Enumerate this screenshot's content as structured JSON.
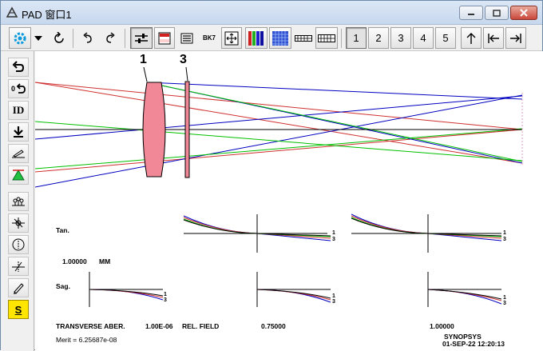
{
  "window": {
    "title": "PAD 窗口1",
    "controls": [
      "minimize",
      "restore",
      "close"
    ]
  },
  "toolbar": {
    "buttons": [
      {
        "name": "gear-dropdown",
        "icon": "gear-icon"
      },
      {
        "name": "refresh",
        "icon": "refresh-icon"
      },
      {
        "name": "undo",
        "icon": "undo-arrow-icon"
      },
      {
        "name": "redo",
        "icon": "redo-arrow-icon"
      },
      {
        "name": "sliders",
        "icon": "sliders-icon"
      },
      {
        "name": "color-table",
        "icon": "color-table-icon"
      },
      {
        "name": "list",
        "icon": "list-icon"
      },
      {
        "name": "glass",
        "label": "BK7"
      },
      {
        "name": "fit",
        "icon": "fit-icon"
      },
      {
        "name": "color-bars",
        "icon": "color-bars-icon"
      },
      {
        "name": "spot",
        "icon": "spot-icon"
      },
      {
        "name": "grid1",
        "icon": "grid-icon"
      },
      {
        "name": "grid2",
        "icon": "grid-icon"
      }
    ],
    "numbers": [
      "1",
      "2",
      "3",
      "4",
      "5"
    ],
    "nav_icons": [
      "up-arrow-icon",
      "first-icon",
      "last-icon"
    ]
  },
  "left_toolbar": {
    "items": [
      {
        "name": "undo-icon"
      },
      {
        "name": "zero-undo-icon",
        "label": "0"
      },
      {
        "name": "id-button",
        "label": "ID"
      },
      {
        "name": "download-icon"
      },
      {
        "name": "edit-icon"
      },
      {
        "name": "triangle-icon"
      },
      {
        "name": "lens-icon"
      },
      {
        "name": "axis-icon"
      },
      {
        "name": "circle-icon"
      },
      {
        "name": "tilt-icon"
      },
      {
        "name": "pencil-icon"
      },
      {
        "name": "s-icon",
        "label": "S"
      }
    ]
  },
  "plot": {
    "surface_labels": [
      "1",
      "3"
    ],
    "tan_label": "Tan.",
    "sag_label": "Sag.",
    "scale_value": "1.00000",
    "scale_unit": "MM",
    "aber_title": "TRANSVERSE ABER.",
    "aber_value": "1.00E-06",
    "field_label": "REL. FIELD",
    "fields": [
      "0.75000",
      "1.00000"
    ],
    "merit": "Merit = 6.25687e-08",
    "program": "SYNOPSYS",
    "date": "01-SEP-22  12:20:13",
    "curve_tags": [
      "1",
      "3"
    ],
    "colors": {
      "red": "#d03030",
      "blue": "#0000c0",
      "green": "#00c000",
      "lens": "#f08898",
      "black": "#000000"
    }
  }
}
